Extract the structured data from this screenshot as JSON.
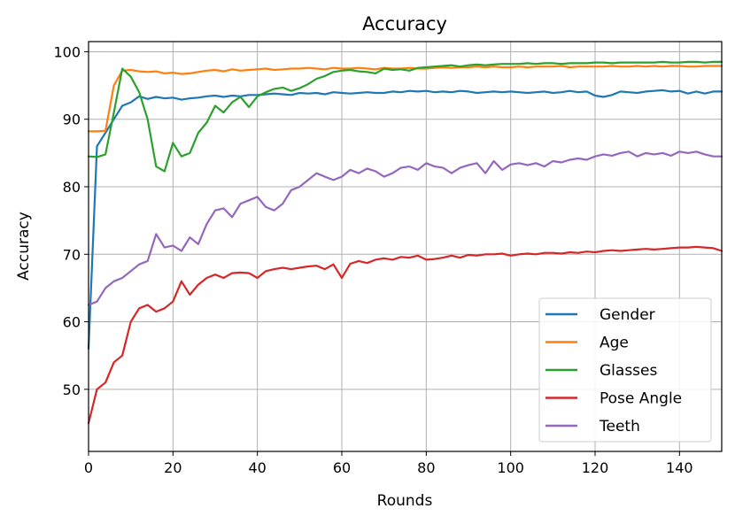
{
  "chart_data": {
    "type": "line",
    "title": "Accuracy",
    "xlabel": "Rounds",
    "ylabel": "Accuracy",
    "xlim": [
      0,
      150
    ],
    "ylim": [
      40.8,
      101.5
    ],
    "x_ticks": [
      0,
      20,
      40,
      60,
      80,
      100,
      120,
      140
    ],
    "y_ticks": [
      50,
      60,
      70,
      80,
      90,
      100
    ],
    "grid": true,
    "legend_position": "bottom-right",
    "x": [
      0,
      2,
      4,
      6,
      8,
      10,
      12,
      14,
      16,
      18,
      20,
      22,
      24,
      26,
      28,
      30,
      32,
      34,
      36,
      38,
      40,
      42,
      44,
      46,
      48,
      50,
      52,
      54,
      56,
      58,
      60,
      62,
      64,
      66,
      68,
      70,
      72,
      74,
      76,
      78,
      80,
      82,
      84,
      86,
      88,
      90,
      92,
      94,
      96,
      98,
      100,
      102,
      104,
      106,
      108,
      110,
      112,
      114,
      116,
      118,
      120,
      122,
      124,
      126,
      128,
      130,
      132,
      134,
      136,
      138,
      140,
      142,
      144,
      146,
      148,
      150
    ],
    "series": [
      {
        "name": "Gender",
        "color": "#1f77b4",
        "values": [
          56,
          86,
          88,
          90,
          92,
          92.5,
          93.4,
          93,
          93.3,
          93.1,
          93.2,
          92.9,
          93.1,
          93.2,
          93.4,
          93.5,
          93.3,
          93.5,
          93.4,
          93.6,
          93.6,
          93.7,
          93.8,
          93.7,
          93.6,
          93.9,
          93.8,
          93.9,
          93.7,
          94.0,
          93.9,
          93.8,
          93.9,
          94.0,
          93.9,
          93.9,
          94.1,
          94.0,
          94.2,
          94.1,
          94.2,
          94.0,
          94.1,
          94.0,
          94.2,
          94.1,
          93.9,
          94.0,
          94.1,
          94.0,
          94.1,
          94.0,
          93.9,
          94.0,
          94.1,
          93.9,
          94.0,
          94.2,
          94.0,
          94.1,
          93.5,
          93.3,
          93.6,
          94.1,
          94.0,
          93.9,
          94.1,
          94.2,
          94.3,
          94.1,
          94.2,
          93.8,
          94.1,
          93.8,
          94.1,
          94.1
        ]
      },
      {
        "name": "Age",
        "color": "#ff7f0e",
        "values": [
          88.2,
          88.2,
          88.3,
          95,
          97.2,
          97.3,
          97.1,
          97.0,
          97.1,
          96.8,
          96.9,
          96.7,
          96.8,
          97.0,
          97.2,
          97.3,
          97.1,
          97.4,
          97.2,
          97.3,
          97.4,
          97.5,
          97.3,
          97.4,
          97.5,
          97.5,
          97.6,
          97.5,
          97.4,
          97.6,
          97.5,
          97.5,
          97.6,
          97.5,
          97.4,
          97.6,
          97.5,
          97.5,
          97.6,
          97.5,
          97.5,
          97.6,
          97.7,
          97.6,
          97.7,
          97.7,
          97.8,
          97.7,
          97.8,
          97.7,
          97.7,
          97.8,
          97.7,
          97.8,
          97.8,
          97.8,
          97.9,
          97.7,
          97.8,
          97.8,
          97.8,
          97.8,
          97.9,
          97.8,
          97.8,
          97.9,
          97.8,
          97.9,
          97.8,
          97.9,
          97.9,
          97.8,
          97.8,
          97.9,
          97.9,
          97.9
        ]
      },
      {
        "name": "Glasses",
        "color": "#2ca02c",
        "values": [
          84.5,
          84.4,
          84.8,
          91,
          97.5,
          96.3,
          94,
          90,
          83,
          82.3,
          86.5,
          84.5,
          85,
          88,
          89.5,
          92,
          91,
          92.5,
          93.3,
          91.8,
          93.4,
          94,
          94.5,
          94.7,
          94.2,
          94.6,
          95.2,
          96,
          96.4,
          97,
          97.2,
          97.3,
          97.1,
          97.0,
          96.8,
          97.5,
          97.3,
          97.4,
          97.2,
          97.6,
          97.7,
          97.8,
          97.9,
          98.0,
          97.8,
          98.0,
          98.1,
          98.0,
          98.1,
          98.2,
          98.2,
          98.2,
          98.3,
          98.2,
          98.3,
          98.3,
          98.2,
          98.3,
          98.3,
          98.3,
          98.4,
          98.4,
          98.3,
          98.4,
          98.4,
          98.4,
          98.4,
          98.4,
          98.5,
          98.4,
          98.4,
          98.5,
          98.5,
          98.4,
          98.5,
          98.5
        ]
      },
      {
        "name": "Pose Angle",
        "color": "#d62728",
        "values": [
          45,
          50,
          51,
          54,
          55,
          60,
          62,
          62.5,
          61.5,
          62,
          63,
          66,
          64,
          65.5,
          66.5,
          67,
          66.5,
          67.2,
          67.3,
          67.2,
          66.5,
          67.5,
          67.8,
          68.0,
          67.8,
          68.0,
          68.2,
          68.3,
          67.8,
          68.5,
          66.5,
          68.6,
          69.0,
          68.7,
          69.2,
          69.4,
          69.2,
          69.6,
          69.5,
          69.8,
          69.2,
          69.3,
          69.5,
          69.8,
          69.5,
          69.9,
          69.8,
          70.0,
          70.0,
          70.1,
          69.8,
          70.0,
          70.1,
          70.0,
          70.2,
          70.2,
          70.1,
          70.3,
          70.2,
          70.4,
          70.3,
          70.5,
          70.6,
          70.5,
          70.6,
          70.7,
          70.8,
          70.7,
          70.8,
          70.9,
          71.0,
          71.0,
          71.1,
          71.0,
          70.9,
          70.5
        ]
      },
      {
        "name": "Teeth",
        "color": "#9467bd",
        "values": [
          62.5,
          63,
          65,
          66,
          66.5,
          67.5,
          68.5,
          69,
          73,
          71,
          71.3,
          70.5,
          72.5,
          71.5,
          74.5,
          76.5,
          76.8,
          75.5,
          77.5,
          78,
          78.5,
          77,
          76.5,
          77.5,
          79.5,
          80,
          81,
          82,
          81.5,
          81.0,
          81.5,
          82.5,
          82.0,
          82.7,
          82.3,
          81.5,
          82.0,
          82.8,
          83.0,
          82.5,
          83.5,
          83.0,
          82.8,
          82.0,
          82.8,
          83.2,
          83.5,
          82.0,
          83.8,
          82.5,
          83.3,
          83.5,
          83.2,
          83.5,
          83.0,
          83.8,
          83.6,
          84.0,
          84.2,
          84.0,
          84.5,
          84.8,
          84.6,
          85.0,
          85.2,
          84.5,
          85.0,
          84.8,
          85.0,
          84.6,
          85.2,
          85.0,
          85.2,
          84.8,
          84.5,
          84.5
        ]
      }
    ]
  }
}
